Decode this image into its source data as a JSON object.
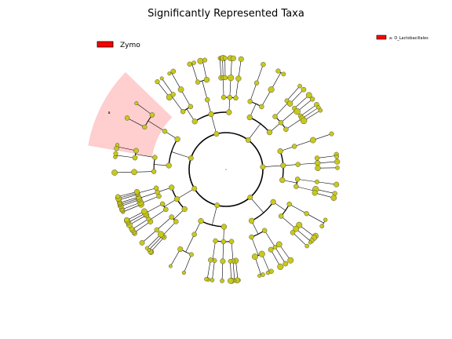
{
  "title": "Significantly Represented Taxa",
  "legend_main": {
    "label": "Zymo",
    "color": "#ff0000"
  },
  "legend_clade": {
    "label": "a: O_Lactobacillales",
    "color": "#ff0000"
  },
  "highlight_label": "a",
  "colors": {
    "node_default": "#c8c81e",
    "node_highlight": "#ff0000",
    "shade": "#ffb0b0",
    "edge": "#000000"
  },
  "cladogram": {
    "levels": [
      "root",
      "phylum",
      "class",
      "order",
      "family",
      "genus"
    ],
    "highlighted_clade_span_deg": [
      190,
      224
    ],
    "highlighted_node_angle_deg": 205
  }
}
